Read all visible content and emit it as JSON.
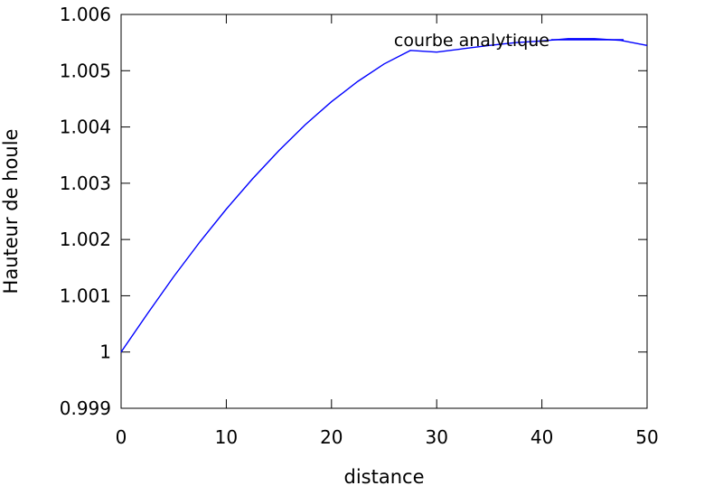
{
  "chart_data": {
    "type": "line",
    "title": "",
    "xlabel": "distance",
    "ylabel": "Hauteur de houle",
    "xlim": [
      0,
      50
    ],
    "ylim": [
      0.999,
      1.006
    ],
    "xticks": [
      0,
      10,
      20,
      30,
      40,
      50
    ],
    "xtick_labels": [
      "0",
      "10",
      "20",
      "30",
      "40",
      "50"
    ],
    "yticks": [
      0.999,
      1.0,
      1.001,
      1.002,
      1.003,
      1.004,
      1.005,
      1.006
    ],
    "ytick_labels": [
      "0.999",
      "1",
      "1.001",
      "1.002",
      "1.003",
      "1.004",
      "1.005",
      "1.006"
    ],
    "grid": false,
    "legend_position": "top-right",
    "series": [
      {
        "name": "courbe analytique",
        "color": "#0000ff",
        "x": [
          0,
          2.5,
          5,
          7.5,
          10,
          12.5,
          15,
          17.5,
          20,
          22.5,
          25,
          27.5,
          30,
          32.5,
          35,
          37.5,
          40,
          42.5,
          45,
          47.5,
          50
        ],
        "y": [
          1.0,
          1.00068,
          1.00134,
          1.00196,
          1.00254,
          1.00308,
          1.00358,
          1.00404,
          1.00445,
          1.00481,
          1.00512,
          1.00536,
          1.00533,
          1.00539,
          1.00545,
          1.0055,
          1.00553,
          1.00557,
          1.00557,
          1.00554,
          1.00545
        ]
      }
    ]
  }
}
